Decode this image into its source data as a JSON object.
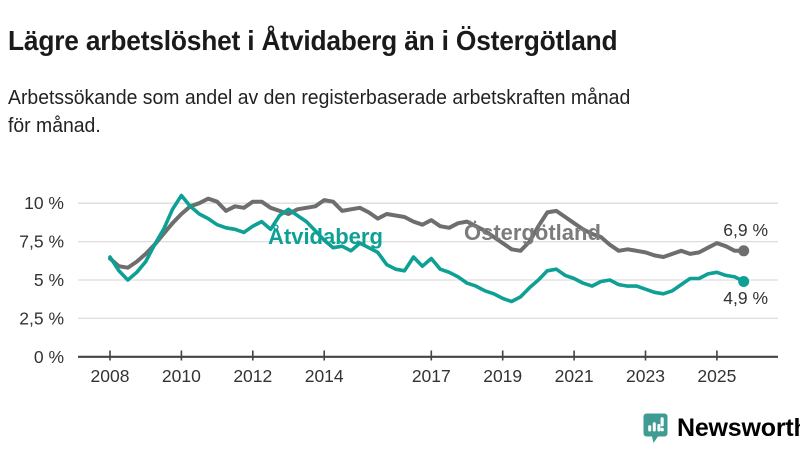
{
  "header": {
    "title": "Lägre arbetslöshet i Åtvidaberg än i Östergötland",
    "subtitle_line1": "Arbetssökande som andel av den registerbaserade arbetskraften månad",
    "subtitle_line2": "för månad."
  },
  "footer": {
    "brand": "Newsworthy",
    "brand_color": "#3E9C94",
    "icon": "bar-chart-speech-bubble-icon"
  },
  "colors": {
    "atvidaberg_line": "#0EA095",
    "ostergotland_line": "#6E6E6E",
    "ostergotland_label": "#7B7B7B",
    "gridline": "#DDDDDD",
    "axis": "#444444",
    "tick_text": "#333333",
    "title_text": "#1A1A1A"
  },
  "chart_data": {
    "type": "line",
    "title": "Lägre arbetslöshet i Åtvidaberg än i Östergötland",
    "subtitle": "Arbetssökande som andel av den registerbaserade arbetskraften månad för månad.",
    "xlabel": "",
    "ylabel": "",
    "grid": true,
    "legend": "inline-labels",
    "ylim": [
      0,
      10.8
    ],
    "xlim": [
      2008,
      2025.75
    ],
    "x_unit": "year (monthly series, quarterly sampled)",
    "y_unit": "percent",
    "x_start": 2008,
    "x_step": 0.25,
    "y_ticks": {
      "values": [
        0,
        2.5,
        5,
        7.5,
        10
      ],
      "labels": [
        "0 %",
        "2,5 %",
        "5 %",
        "7,5 %",
        "10 %"
      ]
    },
    "x_ticks": {
      "values": [
        2008,
        2010,
        2012,
        2014,
        2017,
        2019,
        2021,
        2023,
        2025
      ],
      "labels": [
        "2008",
        "2010",
        "2012",
        "2014",
        "2017",
        "2019",
        "2021",
        "2023",
        "2025"
      ]
    },
    "series": [
      {
        "name": "Åtvidaberg",
        "color": "#0EA095",
        "end_label": "4,9 %",
        "end_value": 4.9,
        "values": [
          6.5,
          5.6,
          5.0,
          5.5,
          6.2,
          7.3,
          8.3,
          9.6,
          10.5,
          9.8,
          9.3,
          9.0,
          8.6,
          8.4,
          8.3,
          8.1,
          8.5,
          8.8,
          8.3,
          9.2,
          9.6,
          9.2,
          8.8,
          8.2,
          7.6,
          7.1,
          7.2,
          6.9,
          7.4,
          7.1,
          6.8,
          6.0,
          5.7,
          5.6,
          6.5,
          5.9,
          6.4,
          5.7,
          5.5,
          5.2,
          4.8,
          4.6,
          4.3,
          4.1,
          3.8,
          3.6,
          3.9,
          4.5,
          5.0,
          5.6,
          5.7,
          5.3,
          5.1,
          4.8,
          4.6,
          4.9,
          5.0,
          4.7,
          4.6,
          4.6,
          4.4,
          4.2,
          4.1,
          4.3,
          4.7,
          5.1,
          5.1,
          5.4,
          5.5,
          5.3,
          5.2,
          4.9
        ]
      },
      {
        "name": "Östergötland",
        "color": "#6E6E6E",
        "end_label": "6,9 %",
        "end_value": 6.9,
        "values": [
          6.4,
          5.9,
          5.8,
          6.2,
          6.7,
          7.3,
          8.0,
          8.7,
          9.3,
          9.8,
          10.0,
          10.3,
          10.1,
          9.5,
          9.8,
          9.7,
          10.1,
          10.1,
          9.7,
          9.5,
          9.3,
          9.6,
          9.7,
          9.8,
          10.2,
          10.1,
          9.5,
          9.6,
          9.7,
          9.4,
          9.0,
          9.3,
          9.2,
          9.1,
          8.8,
          8.6,
          8.9,
          8.5,
          8.4,
          8.7,
          8.8,
          8.5,
          8.2,
          7.8,
          7.4,
          7.0,
          6.9,
          7.5,
          8.5,
          9.4,
          9.5,
          9.1,
          8.7,
          8.3,
          8.0,
          7.8,
          7.3,
          6.9,
          7.0,
          6.9,
          6.8,
          6.6,
          6.5,
          6.7,
          6.9,
          6.7,
          6.8,
          7.1,
          7.4,
          7.2,
          6.9,
          6.9
        ]
      }
    ]
  }
}
